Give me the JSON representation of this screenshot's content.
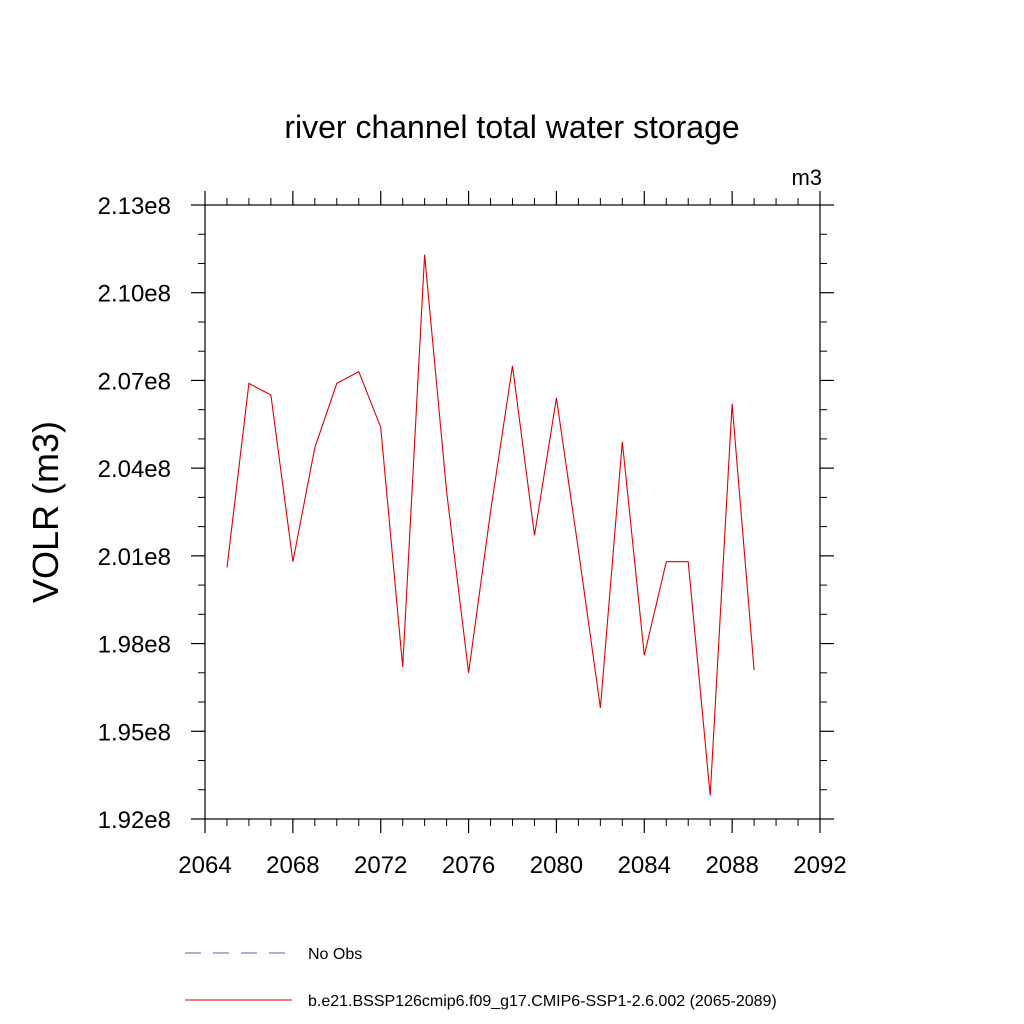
{
  "chart_data": {
    "type": "line",
    "title": "river channel total water storage",
    "units_label": "m3",
    "xlabel": "",
    "ylabel": "VOLR  (m3)",
    "xlim": [
      2064,
      2092
    ],
    "ylim": [
      192000000,
      213000000
    ],
    "x_ticks": [
      2064,
      2068,
      2072,
      2076,
      2080,
      2084,
      2088,
      2092
    ],
    "x_tick_labels": [
      "2064",
      "2068",
      "2072",
      "2076",
      "2080",
      "2084",
      "2088",
      "2092"
    ],
    "y_ticks": [
      192000000,
      195000000,
      198000000,
      201000000,
      204000000,
      207000000,
      210000000,
      213000000
    ],
    "y_tick_labels": [
      "1.92e8",
      "1.95e8",
      "1.98e8",
      "2.01e8",
      "2.04e8",
      "2.07e8",
      "2.10e8",
      "2.13e8"
    ],
    "grid": false,
    "legend_placement": "bottom",
    "series": [
      {
        "name": "No Obs",
        "style": "dashed",
        "color": "#5b5bb7",
        "x": [],
        "values": []
      },
      {
        "name": "b.e21.BSSP126cmip6.f09_g17.CMIP6-SSP1-2.6.002 (2065-2089)",
        "style": "solid",
        "color": "#e00000",
        "x": [
          2065,
          2066,
          2067,
          2068,
          2069,
          2070,
          2071,
          2072,
          2073,
          2074,
          2075,
          2076,
          2077,
          2078,
          2079,
          2080,
          2081,
          2082,
          2083,
          2084,
          2085,
          2086,
          2087,
          2088,
          2089
        ],
        "values": [
          200600000,
          206900000,
          206500000,
          200800000,
          204700000,
          206900000,
          207300000,
          205400000,
          197200000,
          211300000,
          203200000,
          197000000,
          202500000,
          207500000,
          201700000,
          206400000,
          201200000,
          195800000,
          204900000,
          197600000,
          200800000,
          200800000,
          192800000,
          206200000,
          197100000
        ]
      }
    ]
  }
}
